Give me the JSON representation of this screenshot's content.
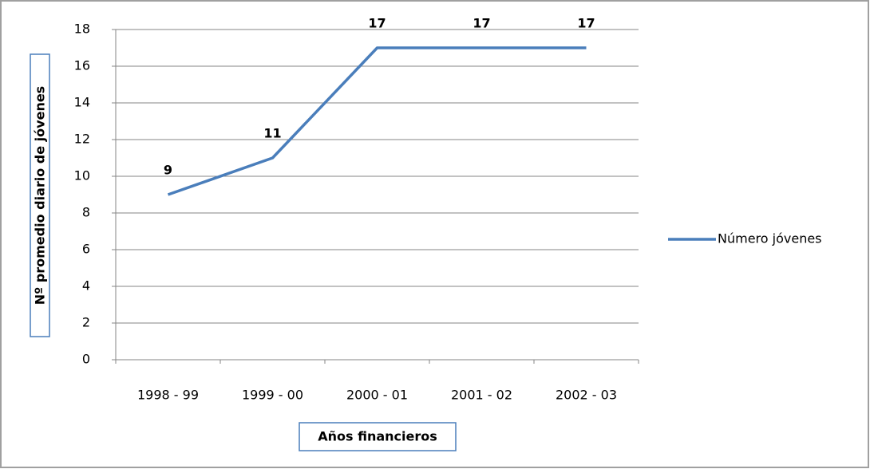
{
  "chart_data": {
    "type": "line",
    "categories": [
      "1998 - 99",
      "1999 - 00",
      "2000 - 01",
      "2001 - 02",
      "2002 - 03"
    ],
    "series": [
      {
        "name": "Número jóvenes",
        "color": "#4a7ebb",
        "values": [
          9,
          11,
          17,
          17,
          17
        ]
      }
    ],
    "xlabel": "Años financieros",
    "ylabel": "Nº promedio diario de jóvenes",
    "ylim": [
      0,
      18
    ],
    "yticks": [
      0,
      2,
      4,
      6,
      8,
      10,
      12,
      14,
      16,
      18
    ],
    "grid": true,
    "legend": "right",
    "data_labels": true
  }
}
